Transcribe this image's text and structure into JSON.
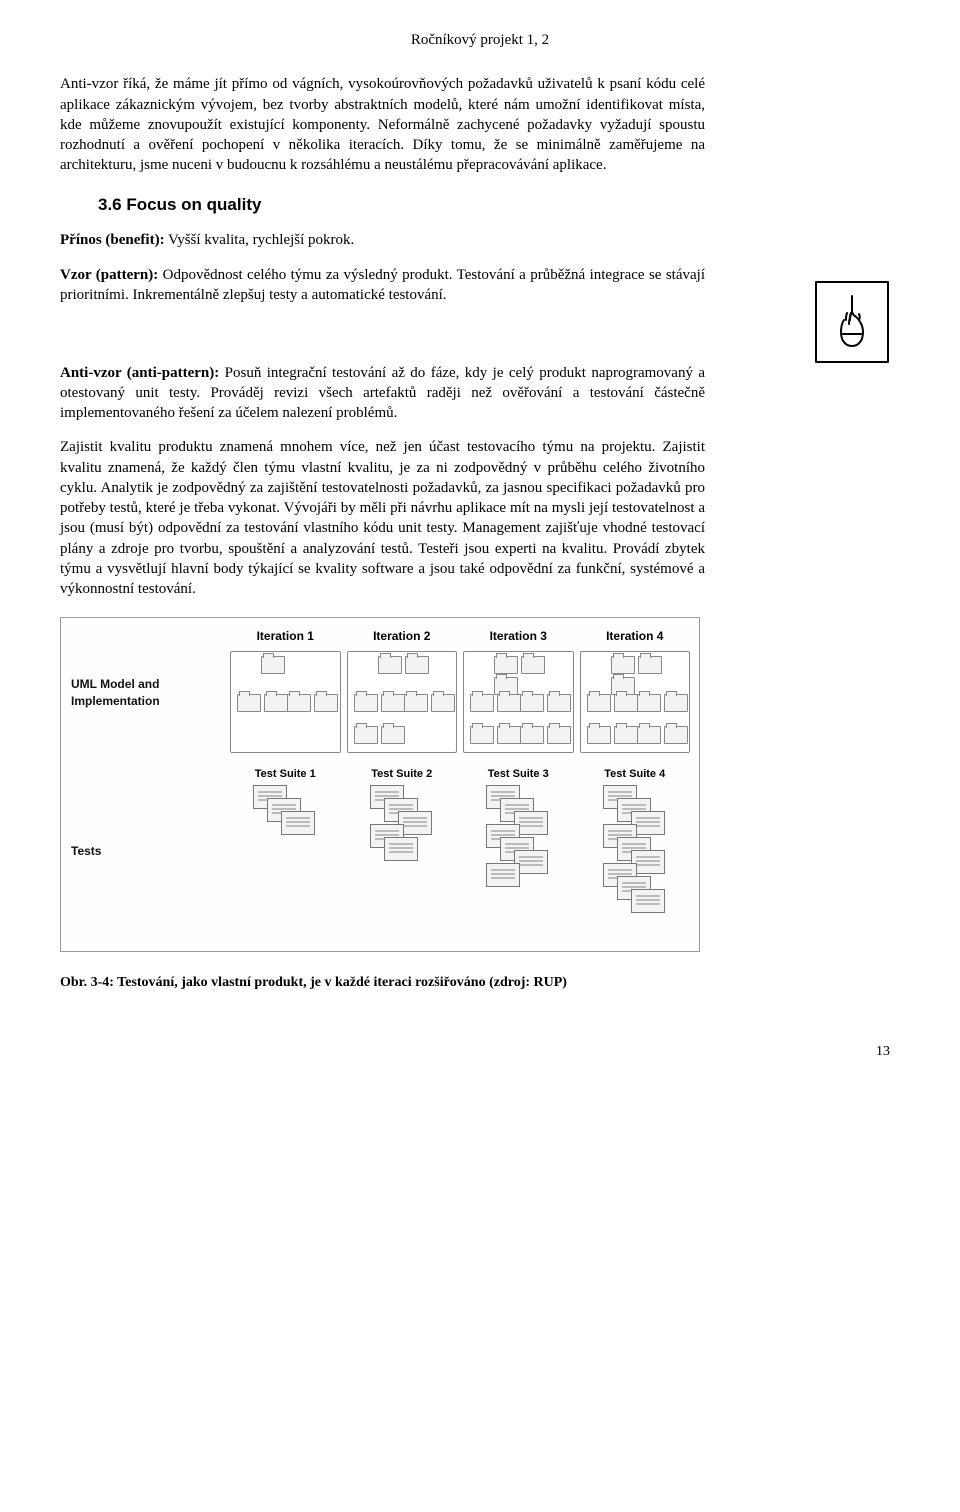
{
  "header": "Ročníkový projekt 1, 2",
  "p1": "Anti-vzor říká, že máme jít přímo od vágních, vysokoúrovňových požadavků uživatelů k psaní kódu celé aplikace zákaznickým vývojem, bez tvorby abstraktních modelů, které nám umožní identifikovat místa, kde můžeme znovupoužít existující komponenty. Neformálně zachycené požadavky vyžadují spoustu rozhodnutí a ověření pochopení v několika iteracích. Díky tomu, že se minimálně zaměřujeme na architekturu, jsme nuceni v budoucnu k rozsáhlému a neustálému přepracovávání aplikace.",
  "section": {
    "num": "3.6",
    "title": "Focus on quality"
  },
  "p2_label": "Přínos (benefit):",
  "p2_text": " Vyšší kvalita, rychlejší pokrok.",
  "p3_label": "Vzor (pattern):",
  "p3_text": " Odpovědnost celého týmu za výsledný produkt. Testování a průběžná integrace se stávají prioritními. Inkrementálně zlepšuj testy a automatické testování.",
  "p4_label": "Anti-vzor (anti-pattern):",
  "p4_text": " Posuň integrační testování až do fáze, kdy je celý produkt naprogramovaný a otestovaný unit testy. Prováděj revizi všech artefaktů raději než ověřování a testování částečně implementovaného řešení za účelem nalezení problémů.",
  "p5": "Zajistit kvalitu produktu znamená mnohem více, než jen účast testovacího týmu na projektu. Zajistit kvalitu znamená, že každý člen týmu vlastní kvalitu, je za ni zodpovědný v průběhu celého životního cyklu. Analytik je zodpovědný za zajištění testovatelnosti požadavků, za jasnou specifikaci požadavků pro potřeby testů, které je třeba vykonat. Vývojáři by měli při návrhu aplikace mít na mysli její testovatelnost a jsou (musí být) odpovědní za testování vlastního kódu unit testy. Management zajišťuje vhodné testovací plány a zdroje pro tvorbu, spouštění a analyzování testů. Testeři jsou experti na kvalitu. Provádí zbytek týmu a vysvětlují hlavní body týkající se kvality software a jsou také odpovědní za funkční, systémové a výkonnostní testování.",
  "figure": {
    "row1_label": "UML Model and Implementation",
    "row2_label": "Tests",
    "iterations": [
      "Iteration 1",
      "Iteration 2",
      "Iteration 3",
      "Iteration 4"
    ],
    "suites": [
      "Test Suite 1",
      "Test Suite 2",
      "Test Suite 3",
      "Test Suite 4"
    ],
    "doc_counts": [
      3,
      5,
      7,
      9
    ],
    "colors": {
      "border": "#9a9a9a",
      "box_border": "#888888",
      "fill": "#f3f3f3"
    }
  },
  "caption": "Obr. 3-4: Testování,  jako vlastní produkt, je v každé iteraci rozšiřováno (zdroj: RUP)",
  "page": "13"
}
